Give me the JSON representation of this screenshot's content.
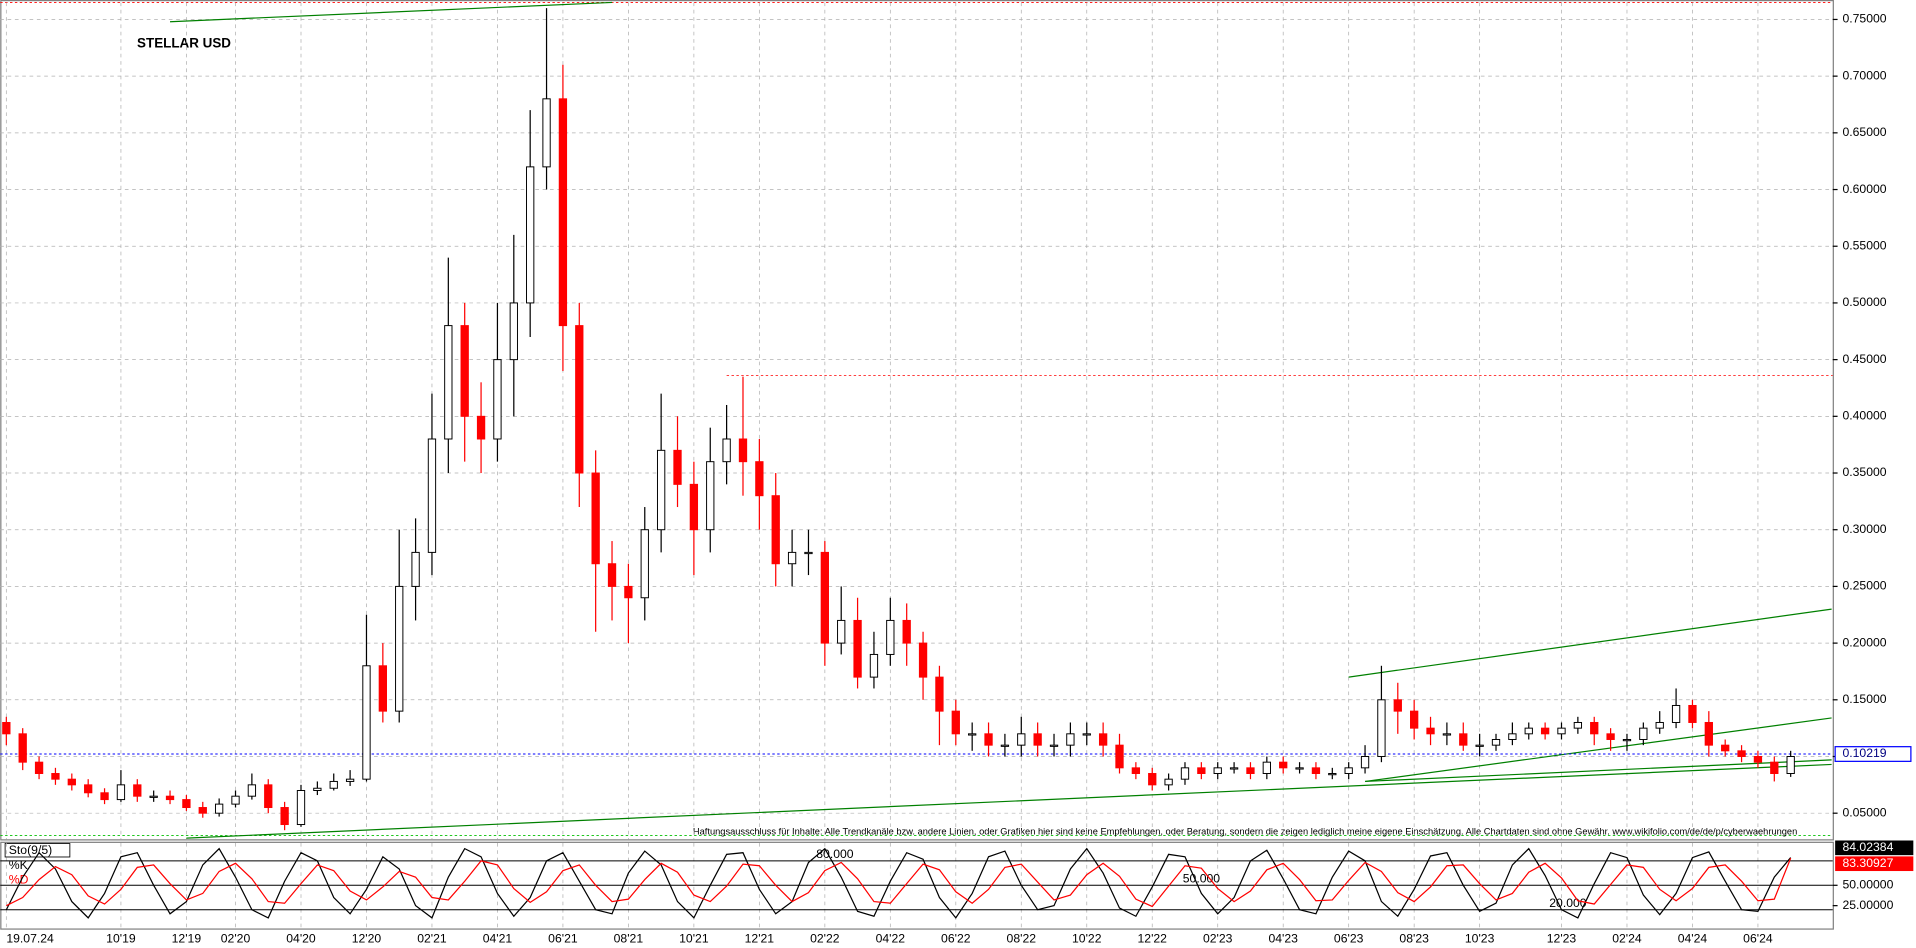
{
  "chart_data": [
    {
      "type": "candlestick",
      "title": "STELLAR USD",
      "open": [
        0.13,
        0.12,
        0.095,
        0.085,
        0.08,
        0.075,
        0.068,
        0.062,
        0.075,
        0.065,
        0.065,
        0.062,
        0.055,
        0.05,
        0.058,
        0.065,
        0.075,
        0.055,
        0.04,
        0.07,
        0.072,
        0.078,
        0.08,
        0.18,
        0.14,
        0.25,
        0.28,
        0.38,
        0.48,
        0.4,
        0.38,
        0.45,
        0.5,
        0.62,
        0.68,
        0.48,
        0.35,
        0.27,
        0.25,
        0.24,
        0.3,
        0.37,
        0.34,
        0.3,
        0.36,
        0.38,
        0.36,
        0.33,
        0.27,
        0.28,
        0.28,
        0.2,
        0.22,
        0.17,
        0.19,
        0.22,
        0.2,
        0.17,
        0.14,
        0.12,
        0.12,
        0.11,
        0.11,
        0.12,
        0.11,
        0.11,
        0.12,
        0.12,
        0.11,
        0.09,
        0.085,
        0.075,
        0.08,
        0.09,
        0.085,
        0.09,
        0.09,
        0.085,
        0.095,
        0.09,
        0.09,
        0.085,
        0.085,
        0.09,
        0.1,
        0.15,
        0.14,
        0.125,
        0.12,
        0.12,
        0.11,
        0.11,
        0.115,
        0.12,
        0.125,
        0.12,
        0.125,
        0.13,
        0.12,
        0.115,
        0.115,
        0.125,
        0.13,
        0.145,
        0.13,
        0.11,
        0.105,
        0.1,
        0.095,
        0.085
      ],
      "high": [
        0.135,
        0.125,
        0.1,
        0.09,
        0.085,
        0.08,
        0.072,
        0.088,
        0.08,
        0.07,
        0.07,
        0.066,
        0.06,
        0.063,
        0.07,
        0.085,
        0.08,
        0.06,
        0.075,
        0.078,
        0.085,
        0.088,
        0.225,
        0.2,
        0.3,
        0.31,
        0.42,
        0.54,
        0.5,
        0.43,
        0.5,
        0.56,
        0.67,
        0.76,
        0.71,
        0.5,
        0.37,
        0.29,
        0.27,
        0.32,
        0.42,
        0.4,
        0.36,
        0.39,
        0.41,
        0.435,
        0.38,
        0.35,
        0.3,
        0.3,
        0.29,
        0.25,
        0.24,
        0.21,
        0.24,
        0.235,
        0.21,
        0.18,
        0.15,
        0.13,
        0.13,
        0.12,
        0.135,
        0.13,
        0.12,
        0.13,
        0.13,
        0.13,
        0.12,
        0.095,
        0.09,
        0.085,
        0.095,
        0.095,
        0.095,
        0.095,
        0.095,
        0.1,
        0.1,
        0.095,
        0.095,
        0.09,
        0.095,
        0.11,
        0.18,
        0.165,
        0.15,
        0.135,
        0.13,
        0.13,
        0.12,
        0.12,
        0.13,
        0.13,
        0.13,
        0.13,
        0.135,
        0.135,
        0.125,
        0.12,
        0.13,
        0.14,
        0.16,
        0.15,
        0.14,
        0.115,
        0.11,
        0.105,
        0.1,
        0.105
      ],
      "low": [
        0.11,
        0.088,
        0.08,
        0.075,
        0.07,
        0.064,
        0.058,
        0.06,
        0.06,
        0.06,
        0.058,
        0.052,
        0.046,
        0.047,
        0.055,
        0.062,
        0.05,
        0.035,
        0.038,
        0.066,
        0.07,
        0.074,
        0.078,
        0.13,
        0.13,
        0.22,
        0.26,
        0.35,
        0.36,
        0.35,
        0.36,
        0.4,
        0.47,
        0.6,
        0.44,
        0.32,
        0.21,
        0.22,
        0.2,
        0.22,
        0.28,
        0.32,
        0.26,
        0.28,
        0.34,
        0.33,
        0.3,
        0.25,
        0.25,
        0.26,
        0.18,
        0.19,
        0.16,
        0.16,
        0.18,
        0.18,
        0.15,
        0.11,
        0.11,
        0.105,
        0.1,
        0.1,
        0.1,
        0.1,
        0.1,
        0.1,
        0.11,
        0.1,
        0.085,
        0.08,
        0.07,
        0.07,
        0.075,
        0.08,
        0.08,
        0.085,
        0.08,
        0.08,
        0.085,
        0.085,
        0.08,
        0.08,
        0.08,
        0.085,
        0.095,
        0.12,
        0.115,
        0.11,
        0.11,
        0.105,
        0.1,
        0.105,
        0.11,
        0.115,
        0.115,
        0.115,
        0.12,
        0.11,
        0.105,
        0.105,
        0.11,
        0.12,
        0.125,
        0.125,
        0.1,
        0.1,
        0.095,
        0.09,
        0.078,
        0.082
      ],
      "close": [
        0.12,
        0.095,
        0.085,
        0.08,
        0.075,
        0.068,
        0.062,
        0.075,
        0.065,
        0.065,
        0.062,
        0.055,
        0.05,
        0.058,
        0.065,
        0.075,
        0.055,
        0.04,
        0.07,
        0.072,
        0.078,
        0.08,
        0.18,
        0.14,
        0.25,
        0.28,
        0.38,
        0.48,
        0.4,
        0.38,
        0.45,
        0.5,
        0.62,
        0.68,
        0.48,
        0.35,
        0.27,
        0.25,
        0.24,
        0.3,
        0.37,
        0.34,
        0.3,
        0.36,
        0.38,
        0.36,
        0.33,
        0.27,
        0.28,
        0.28,
        0.2,
        0.22,
        0.17,
        0.19,
        0.22,
        0.2,
        0.17,
        0.14,
        0.12,
        0.12,
        0.11,
        0.11,
        0.12,
        0.11,
        0.11,
        0.12,
        0.12,
        0.11,
        0.09,
        0.085,
        0.075,
        0.08,
        0.09,
        0.085,
        0.09,
        0.09,
        0.085,
        0.095,
        0.09,
        0.09,
        0.085,
        0.085,
        0.09,
        0.1,
        0.15,
        0.14,
        0.125,
        0.12,
        0.12,
        0.11,
        0.11,
        0.115,
        0.12,
        0.125,
        0.12,
        0.125,
        0.13,
        0.12,
        0.115,
        0.115,
        0.125,
        0.13,
        0.145,
        0.13,
        0.11,
        0.105,
        0.1,
        0.095,
        0.085,
        0.1
      ],
      "up_color": "#000000",
      "down_color": "#ff0000",
      "xticks": [
        {
          "value": 0,
          "label": "19.07.24"
        },
        {
          "value": 7,
          "label": "10'19"
        },
        {
          "value": 11,
          "label": "12'19"
        },
        {
          "value": 14,
          "label": "02'20"
        },
        {
          "value": 18,
          "label": "04'20"
        },
        {
          "value": 22,
          "label": "12'20"
        },
        {
          "value": 26,
          "label": "02'21"
        },
        {
          "value": 30,
          "label": "04'21"
        },
        {
          "value": 34,
          "label": "06'21"
        },
        {
          "value": 38,
          "label": "08'21"
        },
        {
          "value": 42,
          "label": "10'21"
        },
        {
          "value": 46,
          "label": "12'21"
        },
        {
          "value": 50,
          "label": "02'22"
        },
        {
          "value": 54,
          "label": "04'22"
        },
        {
          "value": 58,
          "label": "06'22"
        },
        {
          "value": 62,
          "label": "08'22"
        },
        {
          "value": 66,
          "label": "10'22"
        },
        {
          "value": 70,
          "label": "12'22"
        },
        {
          "value": 74,
          "label": "02'23"
        },
        {
          "value": 78,
          "label": "04'23"
        },
        {
          "value": 82,
          "label": "06'23"
        },
        {
          "value": 86,
          "label": "08'23"
        },
        {
          "value": 90,
          "label": "10'23"
        },
        {
          "value": 95,
          "label": "12'23"
        },
        {
          "value": 99,
          "label": "02'24"
        },
        {
          "value": 103,
          "label": "04'24"
        },
        {
          "value": 107,
          "label": "06'24"
        }
      ],
      "ylim": [
        0.027,
        0.765
      ],
      "yticks": [
        {
          "value": 0.05,
          "label": "0.05000"
        },
        {
          "value": 0.1,
          "label": "0.10000"
        },
        {
          "value": 0.15,
          "label": "0.15000"
        },
        {
          "value": 0.2,
          "label": "0.20000"
        },
        {
          "value": 0.25,
          "label": "0.25000"
        },
        {
          "value": 0.3,
          "label": "0.30000"
        },
        {
          "value": 0.35,
          "label": "0.35000"
        },
        {
          "value": 0.4,
          "label": "0.40000"
        },
        {
          "value": 0.45,
          "label": "0.45000"
        },
        {
          "value": 0.5,
          "label": "0.50000"
        },
        {
          "value": 0.55,
          "label": "0.55000"
        },
        {
          "value": 0.6,
          "label": "0.60000"
        },
        {
          "value": 0.65,
          "label": "0.65000"
        },
        {
          "value": 0.7,
          "label": "0.70000"
        },
        {
          "value": 0.75,
          "label": "0.75000"
        }
      ],
      "grid": true,
      "last_price": 0.10219,
      "hlines": [
        {
          "value": 0.436,
          "from": 44,
          "color": "#ff0000"
        }
      ],
      "trend_color": "#008000",
      "trendlines": [
        {
          "from": [
            11,
            0.028
          ],
          "to": [
            111.5,
            0.093
          ]
        },
        {
          "from": [
            10,
            0.748
          ],
          "to": [
            37,
            0.765
          ]
        },
        {
          "from": [
            82,
            0.17
          ],
          "to": [
            111.5,
            0.23
          ]
        },
        {
          "from": [
            83,
            0.078
          ],
          "to": [
            111.5,
            0.134
          ]
        },
        {
          "from": [
            83,
            0.078
          ],
          "to": [
            111.5,
            0.097
          ]
        }
      ],
      "annotation": "Haftungsausschluss für Inhalte: Alle Trendkanäle bzw. andere Linien, oder Grafiken hier sind keine Empfehlungen, oder Beratung, sondern die zeigen lediglich meine eigene Einschätzung. Alle Chartdaten sind ohne Gewähr.  www.wikifolio.com/de/de/p/cyberwaehrungen"
    },
    {
      "type": "line",
      "title": "Sto(9/5)",
      "ylim": [
        -3,
        102
      ],
      "yticks": [
        {
          "value": 50,
          "label": "50.00000"
        },
        {
          "value": 25,
          "label": "25.00000"
        }
      ],
      "levels": [
        {
          "value": 80,
          "label": "80.000"
        },
        {
          "value": 50,
          "label": "50.000"
        },
        {
          "value": 20,
          "label": "20.000"
        }
      ],
      "series": [
        {
          "name": "%K",
          "color": "#000000",
          "values": [
            20,
            60,
            90,
            70,
            30,
            10,
            40,
            85,
            90,
            50,
            15,
            30,
            75,
            95,
            60,
            20,
            10,
            55,
            90,
            80,
            35,
            15,
            45,
            85,
            70,
            25,
            10,
            60,
            95,
            85,
            40,
            12,
            35,
            80,
            90,
            55,
            20,
            15,
            65,
            92,
            75,
            30,
            10,
            50,
            88,
            90,
            45,
            15,
            30,
            78,
            95,
            60,
            18,
            12,
            55,
            90,
            82,
            35,
            10,
            40,
            85,
            92,
            50,
            20,
            25,
            70,
            95,
            65,
            22,
            12,
            48,
            88,
            85,
            40,
            15,
            35,
            80,
            93,
            58,
            20,
            15,
            60,
            92,
            80,
            30,
            12,
            45,
            86,
            90,
            50,
            18,
            28,
            75,
            95,
            62,
            20,
            10,
            52,
            90,
            84,
            38,
            14,
            40,
            84,
            91,
            55,
            20,
            18,
            60,
            84.02384
          ]
        },
        {
          "name": "%D",
          "color": "#ff0000",
          "values": [
            25,
            35,
            57,
            73,
            63,
            37,
            27,
            45,
            72,
            75,
            52,
            32,
            40,
            67,
            77,
            58,
            30,
            28,
            52,
            75,
            68,
            43,
            32,
            48,
            67,
            60,
            35,
            32,
            55,
            80,
            75,
            46,
            29,
            42,
            68,
            75,
            50,
            30,
            33,
            57,
            77,
            66,
            38,
            30,
            49,
            76,
            74,
            50,
            30,
            41,
            68,
            78,
            58,
            30,
            28,
            52,
            76,
            69,
            42,
            28,
            45,
            72,
            76,
            54,
            32,
            38,
            63,
            77,
            61,
            33,
            24,
            49,
            74,
            71,
            46,
            30,
            43,
            69,
            77,
            57,
            31,
            32,
            56,
            78,
            67,
            41,
            30,
            48,
            74,
            75,
            52,
            32,
            40,
            66,
            77,
            59,
            31,
            27,
            51,
            75,
            72,
            45,
            31,
            46,
            72,
            75,
            55,
            31,
            33,
            83.30927
          ]
        }
      ]
    }
  ]
}
